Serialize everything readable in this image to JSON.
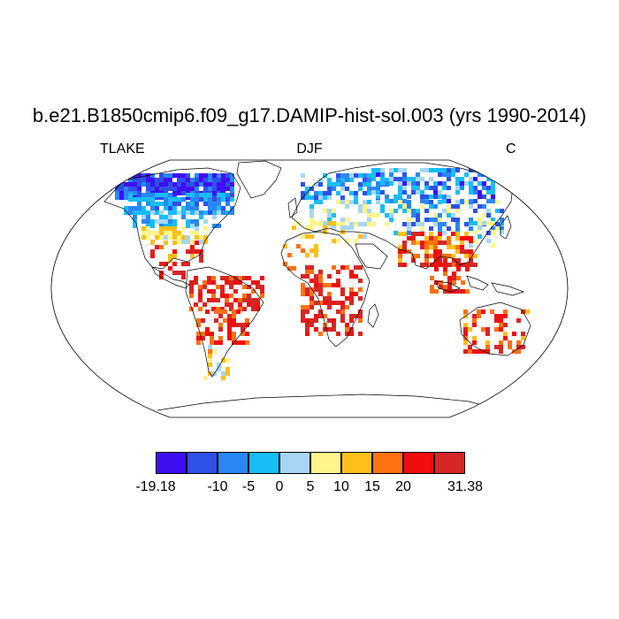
{
  "title": "b.e21.B1850cmip6.f09_g17.DAMIP-hist-sol.003 (yrs 1990-2014)",
  "left_label": "TLAKE",
  "center_label": "DJF",
  "right_label": "C",
  "colorbar": {
    "colors": [
      "#3f0ff2",
      "#2f51e8",
      "#2a87f5",
      "#18bdf7",
      "#a6d6f2",
      "#fff58a",
      "#ffbf1a",
      "#ff7212",
      "#f00d0d",
      "#d62626"
    ],
    "labels": [
      "-19.18",
      "-10",
      "-5",
      "0",
      "5",
      "10",
      "15",
      "20",
      "31.38"
    ]
  },
  "map": {
    "projection": "robinson",
    "variable": "TLAKE",
    "season": "DJF",
    "units": "C",
    "min": -19.18,
    "max": 31.38
  }
}
